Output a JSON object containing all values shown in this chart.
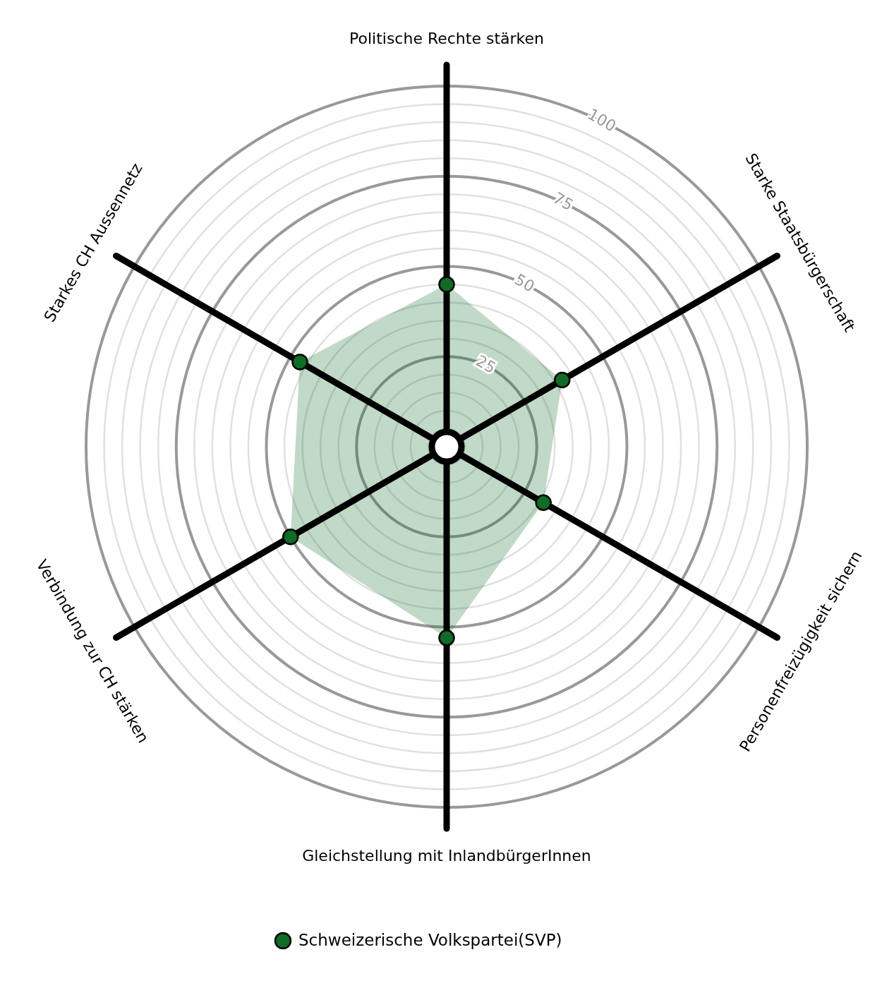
{
  "chart_data": {
    "type": "radar",
    "categories": [
      "Politische Rechte stärken",
      "Starke Staatsbürgerschaft",
      "Personenfreizügigkeit sichern",
      "Gleichstellung mit InlandbürgerInnen",
      "Verbindung zur CH stärken",
      "Starkes CH Aussennetz"
    ],
    "series": [
      {
        "name": "Schweizerische Volkspartei(SVP)",
        "color": "#0f6b25",
        "values": [
          45,
          37,
          31,
          53,
          50,
          47
        ]
      }
    ],
    "ylim": [
      0,
      100
    ],
    "yticks": [
      25,
      50,
      75,
      100
    ],
    "grid": true,
    "legend": "bottom",
    "marker": "circle"
  }
}
